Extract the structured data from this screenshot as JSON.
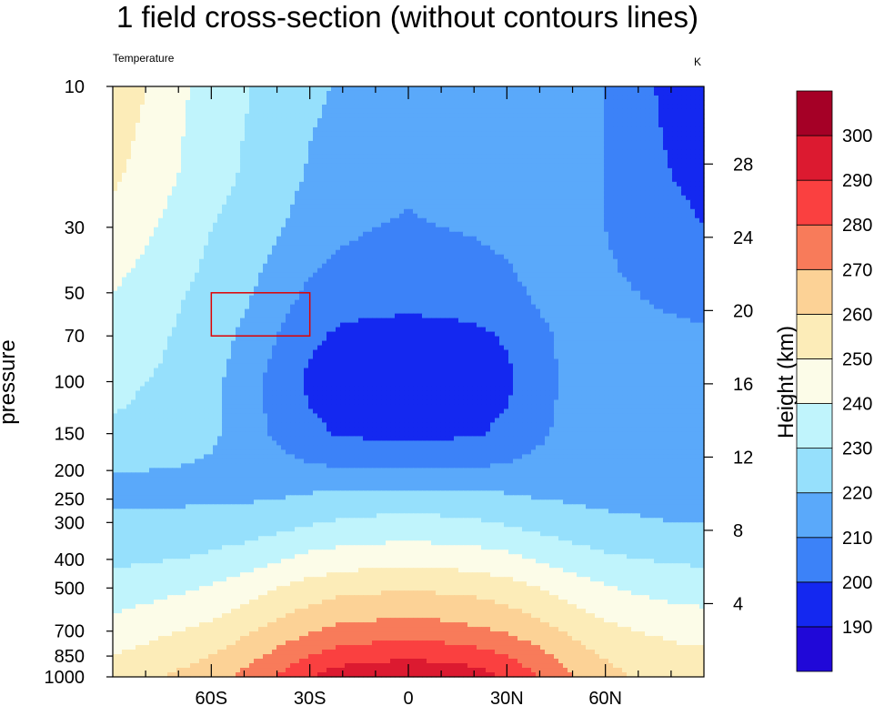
{
  "chart_data": {
    "type": "heatmap",
    "title": "1 field cross-section (without contours lines)",
    "left_string": "Temperature",
    "right_string": "K",
    "ylabel": "pressure",
    "y2label": "Height (km)",
    "x_ticks": [
      "60S",
      "30S",
      "0",
      "30N",
      "60N"
    ],
    "x_tick_values": [
      -60,
      -30,
      0,
      30,
      60
    ],
    "xlim": [
      -90,
      90
    ],
    "y_ticks": [
      10,
      30,
      50,
      70,
      100,
      150,
      200,
      250,
      300,
      400,
      500,
      700,
      850,
      1000
    ],
    "ylim": [
      1000,
      10
    ],
    "y_scale": "log",
    "y2_ticks": [
      4,
      8,
      12,
      16,
      20,
      24,
      28
    ],
    "colorbar_levels": [
      190,
      200,
      210,
      220,
      230,
      240,
      250,
      260,
      270,
      280,
      290,
      300
    ],
    "colorbar_colors": [
      "#2008d8",
      "#1428f0",
      "#3c82f8",
      "#5aa9fa",
      "#96e0fc",
      "#c0f4fc",
      "#fcfce8",
      "#fcecb8",
      "#fcd296",
      "#f87b5a",
      "#fa4040",
      "#dc1a30",
      "#a50026"
    ],
    "field": {
      "lat": [
        -90,
        -80,
        -70,
        -60,
        -50,
        -40,
        -30,
        -20,
        -10,
        0,
        10,
        20,
        30,
        40,
        50,
        60,
        70,
        80,
        90
      ],
      "pressure": [
        10,
        20,
        30,
        50,
        70,
        100,
        150,
        200,
        250,
        300,
        400,
        500,
        700,
        850,
        1000
      ],
      "temperature": [
        [
          258,
          250,
          242,
          236,
          231,
          226,
          222,
          219,
          217,
          216,
          217,
          218,
          219,
          217,
          214,
          210,
          202,
          198,
          196
        ],
        [
          252,
          246,
          240,
          234,
          229,
          224,
          219,
          215,
          213,
          212,
          213,
          214,
          216,
          217,
          214,
          210,
          203,
          200,
          198
        ],
        [
          247,
          242,
          236,
          230,
          226,
          221,
          216,
          212,
          210,
          209,
          210,
          211,
          213,
          216,
          213,
          210,
          205,
          202,
          200
        ],
        [
          240,
          236,
          231,
          227,
          222,
          215,
          208,
          205,
          204,
          203,
          204,
          205,
          207,
          212,
          213,
          212,
          210,
          208,
          207
        ],
        [
          236,
          233,
          229,
          225,
          218,
          210,
          202,
          198,
          197,
          197,
          197,
          198,
          201,
          208,
          213,
          213,
          212,
          212,
          211
        ],
        [
          232,
          230,
          228,
          223,
          215,
          206,
          198,
          195,
          193,
          192,
          193,
          195,
          198,
          206,
          213,
          214,
          214,
          213,
          213
        ],
        [
          229,
          228,
          227,
          222,
          215,
          208,
          202,
          199,
          198,
          198,
          198,
          199,
          202,
          208,
          214,
          215,
          215,
          214,
          214
        ],
        [
          220,
          220,
          219,
          218,
          217,
          214,
          212,
          211,
          211,
          211,
          211,
          211,
          212,
          214,
          216,
          216,
          216,
          215,
          216
        ],
        [
          219,
          219,
          219,
          219,
          219,
          220,
          222,
          224,
          225,
          225,
          225,
          224,
          222,
          220,
          219,
          218,
          218,
          217,
          217
        ],
        [
          222,
          222,
          222,
          223,
          224,
          226,
          229,
          231,
          232,
          233,
          232,
          231,
          229,
          226,
          224,
          222,
          221,
          220,
          220
        ],
        [
          228,
          229,
          230,
          232,
          235,
          239,
          243,
          245,
          246,
          247,
          246,
          245,
          243,
          239,
          235,
          232,
          230,
          229,
          228
        ],
        [
          234,
          236,
          238,
          241,
          245,
          250,
          254,
          257,
          258,
          259,
          258,
          257,
          254,
          250,
          245,
          241,
          238,
          236,
          235
        ],
        [
          244,
          247,
          250,
          253,
          258,
          264,
          269,
          273,
          274,
          275,
          274,
          272,
          269,
          264,
          258,
          253,
          250,
          248,
          246
        ],
        [
          250,
          253,
          256,
          260,
          266,
          273,
          280,
          285,
          287,
          288,
          287,
          285,
          280,
          273,
          265,
          259,
          255,
          253,
          252
        ],
        [
          255,
          258,
          262,
          266,
          273,
          281,
          290,
          296,
          298,
          299,
          298,
          295,
          289,
          280,
          271,
          264,
          259,
          257,
          256
        ]
      ]
    },
    "box": {
      "lat": [
        -60,
        -30
      ],
      "pressure": [
        50,
        70
      ],
      "color": "#e00000"
    }
  }
}
